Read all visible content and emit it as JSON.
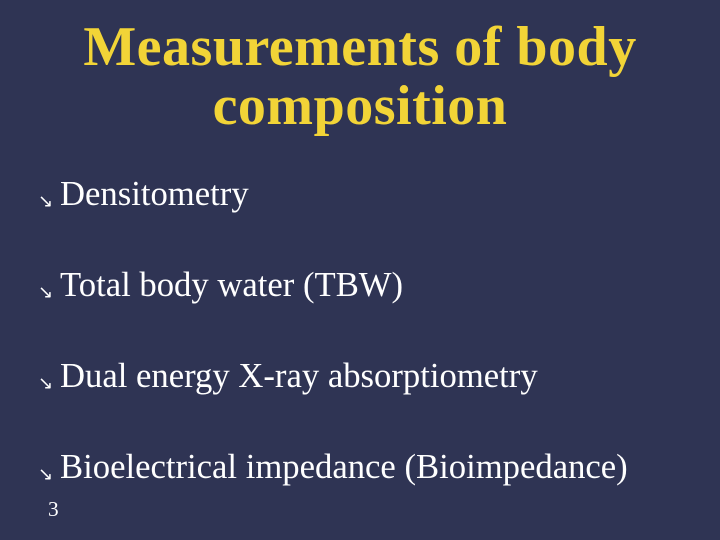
{
  "slide": {
    "background_color": "#2f3454",
    "title": {
      "line1": "Measurements of body",
      "line2": "composition",
      "color": "#f2d437",
      "fontsize_pt": 42
    },
    "bullets": {
      "items": [
        {
          "text": "Densitometry"
        },
        {
          "text": "Total body water (TBW)"
        },
        {
          "text": "Dual energy X-ray absorptiometry"
        },
        {
          "text": "Bioelectrical impedance (Bioimpedance)"
        }
      ],
      "text_color": "#ffffff",
      "icon_color": "#ffffff",
      "fontsize_pt": 26,
      "icon_glyph": "↘"
    },
    "page_number": {
      "value": "3",
      "color": "#ffffff",
      "fontsize_pt": 16
    }
  }
}
